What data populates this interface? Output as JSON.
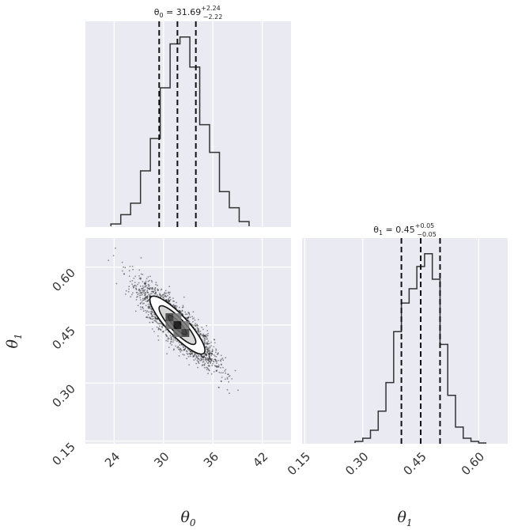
{
  "chart_data": {
    "type": "corner",
    "parameters": [
      "θ0",
      "θ1"
    ],
    "titles": {
      "theta0": {
        "name": "θ",
        "sub": "0",
        "eq": " = 31.69",
        "plus": "+2.24",
        "minus": "−2.22"
      },
      "theta1": {
        "name": "θ",
        "sub": "1",
        "eq": " = 0.45",
        "plus": "+0.05",
        "minus": "−0.05"
      }
    },
    "axis_labels": {
      "x0": {
        "name": "θ",
        "sub": "0"
      },
      "x1": {
        "name": "θ",
        "sub": "1"
      },
      "y1": {
        "name": "θ",
        "sub": "1"
      }
    },
    "theta0": {
      "range": [
        20.5,
        45.5
      ],
      "ticks": [
        "24",
        "30",
        "36",
        "42"
      ],
      "tick_values": [
        24,
        30,
        36,
        42
      ],
      "quantiles": [
        29.47,
        31.69,
        33.93
      ],
      "hist_edges": [
        23.6,
        24.8,
        26.0,
        27.2,
        28.4,
        29.6,
        30.8,
        32.0,
        33.2,
        34.4,
        35.6,
        36.8,
        38.0,
        39.2,
        40.4
      ],
      "hist_counts": [
        1,
        5,
        10,
        24,
        38,
        60,
        79,
        82,
        69,
        44,
        32,
        15,
        8,
        2
      ]
    },
    "theta1": {
      "range": [
        0.143,
        0.675
      ],
      "ticks": [
        "0.15",
        "0.30",
        "0.45",
        "0.60"
      ],
      "tick_values": [
        0.15,
        0.3,
        0.45,
        0.6
      ],
      "quantiles": [
        0.4,
        0.45,
        0.5
      ],
      "hist_edges": [
        0.28,
        0.3,
        0.32,
        0.34,
        0.36,
        0.38,
        0.4,
        0.42,
        0.44,
        0.46,
        0.48,
        0.5,
        0.52,
        0.54,
        0.56,
        0.58,
        0.6,
        0.62
      ],
      "hist_counts": [
        1,
        3,
        8,
        20,
        38,
        70,
        88,
        97,
        111,
        119,
        103,
        62,
        30,
        10,
        3,
        1,
        0
      ]
    },
    "joint": {
      "mean": [
        31.69,
        0.45
      ],
      "sd": [
        2.23,
        0.05
      ],
      "correlation": -0.87,
      "contour_levels": [
        0.5,
        1.0,
        1.5
      ]
    },
    "colors": {
      "background": "#eaeaf2",
      "grid": "#ffffff",
      "line": "#333333",
      "quantile": "#111111"
    }
  }
}
